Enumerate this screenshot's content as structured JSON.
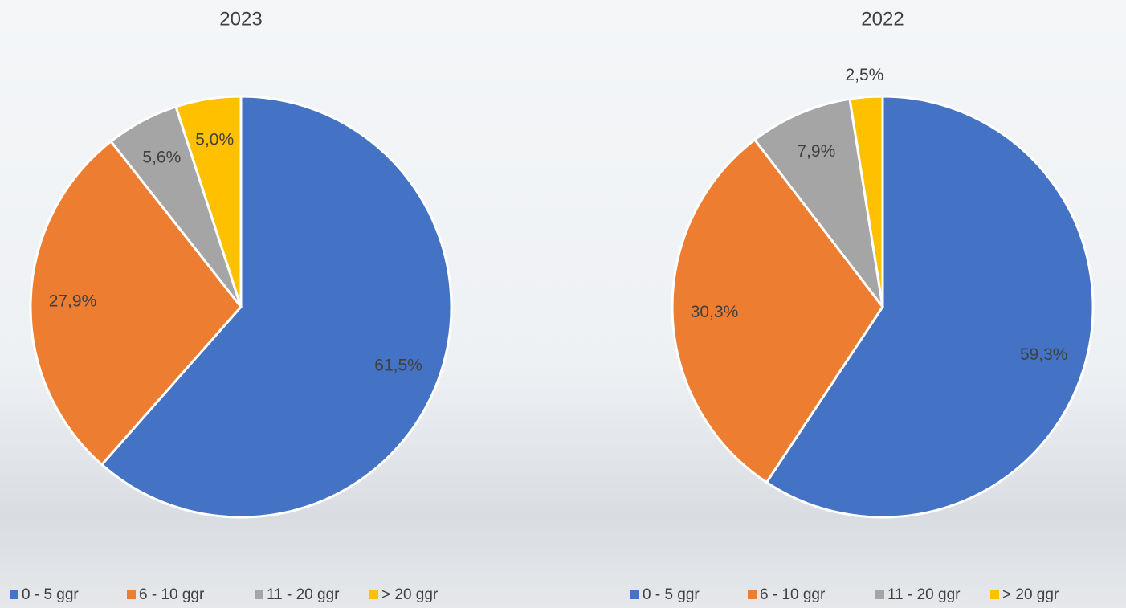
{
  "chart_data": [
    {
      "type": "pie",
      "title": "2023",
      "categories": [
        "0 - 5 ggr",
        "6 - 10 ggr",
        "11 - 20 ggr",
        "> 20 ggr"
      ],
      "values": [
        61.5,
        27.9,
        5.6,
        5.0
      ],
      "value_labels": [
        "61,5%",
        "27,9%",
        "5,6%",
        "5,0%"
      ],
      "colors": [
        "#4472c4",
        "#ed7d31",
        "#a5a5a5",
        "#ffc000"
      ],
      "legend": "bottom"
    },
    {
      "type": "pie",
      "title": "2022",
      "categories": [
        "0 - 5 ggr",
        "6 - 10 ggr",
        "11 - 20 ggr",
        "> 20 ggr"
      ],
      "values": [
        59.3,
        30.3,
        7.9,
        2.5
      ],
      "value_labels": [
        "59,3%",
        "30,3%",
        "7,9%",
        "2,5%"
      ],
      "colors": [
        "#4472c4",
        "#ed7d31",
        "#a5a5a5",
        "#ffc000"
      ],
      "legend": "bottom"
    }
  ]
}
